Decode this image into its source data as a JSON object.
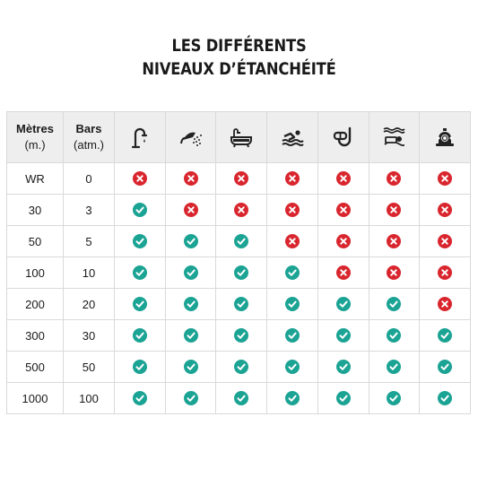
{
  "title": {
    "line1": "LES DIFFÉRENTS",
    "line2": "NIVEAUX D’ÉTANCHÉITÉ"
  },
  "header": {
    "metres": "Mètres",
    "metres_unit": "(m.)",
    "bars": "Bars",
    "bars_unit": "(atm.)",
    "icons": [
      "faucet-splash-icon",
      "shower-icon",
      "bathtub-icon",
      "swimming-icon",
      "snorkel-icon",
      "diving-icon",
      "diving-helmet-icon"
    ]
  },
  "colors": {
    "ok": "#1ba394",
    "no": "#d9262e",
    "header_bg": "#eeeeee",
    "border": "#d9d9d9"
  },
  "rows": [
    {
      "metres": "WR",
      "bars": "0",
      "status": [
        "no",
        "no",
        "no",
        "no",
        "no",
        "no",
        "no"
      ]
    },
    {
      "metres": "30",
      "bars": "3",
      "status": [
        "ok",
        "no",
        "no",
        "no",
        "no",
        "no",
        "no"
      ]
    },
    {
      "metres": "50",
      "bars": "5",
      "status": [
        "ok",
        "ok",
        "ok",
        "no",
        "no",
        "no",
        "no"
      ]
    },
    {
      "metres": "100",
      "bars": "10",
      "status": [
        "ok",
        "ok",
        "ok",
        "ok",
        "no",
        "no",
        "no"
      ]
    },
    {
      "metres": "200",
      "bars": "20",
      "status": [
        "ok",
        "ok",
        "ok",
        "ok",
        "ok",
        "ok",
        "no"
      ]
    },
    {
      "metres": "300",
      "bars": "30",
      "status": [
        "ok",
        "ok",
        "ok",
        "ok",
        "ok",
        "ok",
        "ok"
      ]
    },
    {
      "metres": "500",
      "bars": "50",
      "status": [
        "ok",
        "ok",
        "ok",
        "ok",
        "ok",
        "ok",
        "ok"
      ]
    },
    {
      "metres": "1000",
      "bars": "100",
      "status": [
        "ok",
        "ok",
        "ok",
        "ok",
        "ok",
        "ok",
        "ok"
      ]
    }
  ]
}
